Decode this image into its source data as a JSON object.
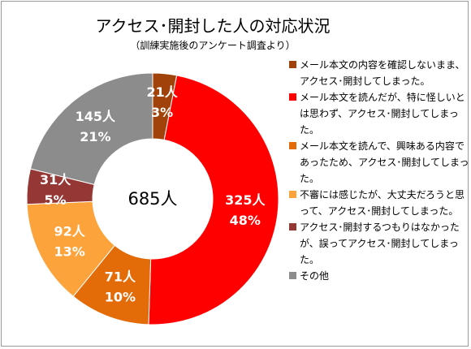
{
  "chart_data": {
    "type": "pie",
    "title": "アクセス･開封した人の対応状況",
    "subtitle": "（訓練実施後のアンケート調査より）",
    "center_label": "685人",
    "slices": [
      {
        "label": "メール本文の内容を確認しないまま、アクセス･開封してしまった。",
        "count": "21人",
        "percent": "3%",
        "value": 21,
        "color": "#a0420a"
      },
      {
        "label": "メール本文を読んだが、特に怪しいとは思わず、アクセス･開封してしまった。",
        "count": "325人",
        "percent": "48%",
        "value": 325,
        "color": "#ff0000"
      },
      {
        "label": "メール本文を読んで、興味ある内容であったため、アクセス･開封してしまった。",
        "count": "71人",
        "percent": "10%",
        "value": 71,
        "color": "#e36c09"
      },
      {
        "label": "不審には感じたが、大丈夫だろうと思って、アクセス･開封してしまった。",
        "count": "92人",
        "percent": "13%",
        "value": 92,
        "color": "#fca33c"
      },
      {
        "label": "アクセス･開封するつもりはなかったが、誤ってアクセス･開封してしまった。",
        "count": "31人",
        "percent": "5%",
        "value": 31,
        "color": "#953735"
      },
      {
        "label": "その他",
        "count": "145人",
        "percent": "21%",
        "value": 145,
        "color": "#8c8c8c"
      }
    ],
    "legend_position": "right"
  }
}
